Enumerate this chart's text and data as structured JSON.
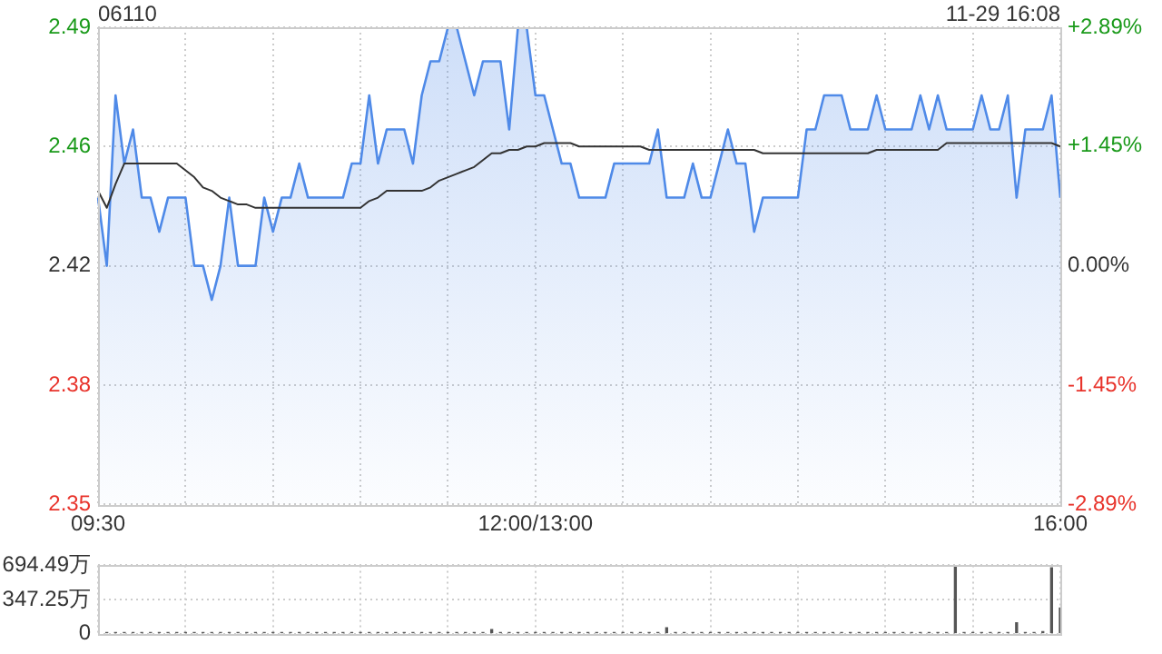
{
  "chart_data": [
    {
      "type": "line",
      "title": "06110",
      "annotations": [
        "11-29 16:08"
      ],
      "grid": true,
      "marker": "none",
      "categories": [
        "09:30",
        null,
        null,
        null,
        null,
        null,
        null,
        null,
        null,
        null,
        null,
        null,
        null,
        null,
        null,
        null,
        null,
        null,
        null,
        null,
        null,
        null,
        null,
        null,
        null,
        null,
        null,
        null,
        null,
        null,
        null,
        null,
        null,
        null,
        null,
        null,
        null,
        null,
        null,
        null,
        null,
        null,
        null,
        null,
        null,
        null,
        null,
        null,
        null,
        null,
        "12:00/13:00",
        null,
        null,
        null,
        null,
        null,
        null,
        null,
        null,
        null,
        null,
        null,
        null,
        null,
        null,
        null,
        null,
        null,
        null,
        null,
        null,
        null,
        null,
        null,
        null,
        null,
        null,
        null,
        null,
        null,
        null,
        null,
        null,
        null,
        null,
        null,
        null,
        null,
        null,
        null,
        null,
        null,
        null,
        null,
        null,
        null,
        null,
        null,
        null,
        null,
        null,
        null,
        null,
        null,
        null,
        null,
        null,
        null,
        null,
        null,
        "16:00"
      ],
      "ylim": [
        2.35,
        2.49
      ],
      "yticks": [
        2.35,
        {
          "value": 2.385,
          "label": "2.38"
        },
        2.42,
        {
          "value": 2.455,
          "label": "2.46"
        },
        2.49
      ],
      "y2lim": [
        -2.89,
        2.89
      ],
      "y2ticks": [
        {
          "value": -2.89,
          "label": "-2.89%"
        },
        {
          "value": -1.45,
          "label": "-1.45%"
        },
        {
          "value": 0,
          "label": "0.00%"
        },
        {
          "value": 1.45,
          "label": "+1.45%"
        },
        {
          "value": 2.89,
          "label": "+2.89%"
        }
      ],
      "series": [
        {
          "type": "area",
          "color": "#4f8ae8",
          "values": [
            2.44,
            2.42,
            2.47,
            2.45,
            2.46,
            2.44,
            2.44,
            2.43,
            2.44,
            2.44,
            2.44,
            2.42,
            2.42,
            2.41,
            2.42,
            2.44,
            2.42,
            2.42,
            2.42,
            2.44,
            2.43,
            2.44,
            2.44,
            2.45,
            2.44,
            2.44,
            2.44,
            2.44,
            2.44,
            2.45,
            2.45,
            2.47,
            2.45,
            2.46,
            2.46,
            2.46,
            2.45,
            2.47,
            2.48,
            2.48,
            2.49,
            2.49,
            2.48,
            2.47,
            2.48,
            2.48,
            2.48,
            2.46,
            2.49,
            2.49,
            2.47,
            2.47,
            2.46,
            2.45,
            2.45,
            2.44,
            2.44,
            2.44,
            2.44,
            2.45,
            2.45,
            2.45,
            2.45,
            2.45,
            2.46,
            2.44,
            2.44,
            2.44,
            2.45,
            2.44,
            2.44,
            2.45,
            2.46,
            2.45,
            2.45,
            2.43,
            2.44,
            2.44,
            2.44,
            2.44,
            2.44,
            2.46,
            2.46,
            2.47,
            2.47,
            2.47,
            2.46,
            2.46,
            2.46,
            2.47,
            2.46,
            2.46,
            2.46,
            2.46,
            2.47,
            2.46,
            2.47,
            2.46,
            2.46,
            2.46,
            2.46,
            2.47,
            2.46,
            2.46,
            2.47,
            2.44,
            2.46,
            2.46,
            2.46,
            2.47,
            2.44
          ]
        },
        {
          "type": "line",
          "color": "#333333",
          "values": [
            2.442,
            2.437,
            2.444,
            2.45,
            2.45,
            2.45,
            2.45,
            2.45,
            2.45,
            2.45,
            2.448,
            2.446,
            2.443,
            2.442,
            2.44,
            2.439,
            2.438,
            2.438,
            2.437,
            2.437,
            2.437,
            2.437,
            2.437,
            2.437,
            2.437,
            2.437,
            2.437,
            2.437,
            2.437,
            2.437,
            2.437,
            2.439,
            2.44,
            2.442,
            2.442,
            2.442,
            2.442,
            2.442,
            2.443,
            2.445,
            2.446,
            2.447,
            2.448,
            2.449,
            2.451,
            2.453,
            2.453,
            2.454,
            2.454,
            2.455,
            2.455,
            2.456,
            2.456,
            2.456,
            2.456,
            2.455,
            2.455,
            2.455,
            2.455,
            2.455,
            2.455,
            2.455,
            2.455,
            2.454,
            2.454,
            2.454,
            2.454,
            2.454,
            2.454,
            2.454,
            2.454,
            2.454,
            2.454,
            2.454,
            2.454,
            2.454,
            2.453,
            2.453,
            2.453,
            2.453,
            2.453,
            2.453,
            2.453,
            2.453,
            2.453,
            2.453,
            2.453,
            2.453,
            2.453,
            2.454,
            2.454,
            2.454,
            2.454,
            2.454,
            2.454,
            2.454,
            2.454,
            2.456,
            2.456,
            2.456,
            2.456,
            2.456,
            2.456,
            2.456,
            2.456,
            2.456,
            2.456,
            2.456,
            2.456,
            2.456,
            2.455
          ]
        }
      ]
    },
    {
      "type": "bar",
      "grid": true,
      "tick_labels": "y",
      "categories": [
        null,
        null,
        null,
        null,
        null,
        null,
        null,
        null,
        null,
        null,
        null,
        null,
        null,
        null,
        null,
        null,
        null,
        null,
        null,
        null,
        null,
        null,
        null,
        null,
        null,
        null,
        null,
        null,
        null,
        null,
        null,
        null,
        null,
        null,
        null,
        null,
        null,
        null,
        null,
        null,
        null,
        null,
        null,
        null,
        null,
        null,
        null,
        null,
        null,
        null,
        null,
        null,
        null,
        null,
        null,
        null,
        null,
        null,
        null,
        null,
        null,
        null,
        null,
        null,
        null,
        null,
        null,
        null,
        null,
        null,
        null,
        null,
        null,
        null,
        null,
        null,
        null,
        null,
        null,
        null,
        null,
        null,
        null,
        null,
        null,
        null,
        null,
        null,
        null,
        null,
        null,
        null,
        null,
        null,
        null,
        null,
        null,
        null,
        null,
        null,
        null,
        null,
        null,
        null,
        null,
        null,
        null,
        null,
        null,
        null,
        null
      ],
      "ylim": [
        0,
        694.49
      ],
      "yticks": [
        0,
        {
          "value": 347.25,
          "label": "347.25万"
        },
        {
          "value": 694.49,
          "label": "694.49万"
        }
      ],
      "series": [
        {
          "color": "#555555",
          "values": [
            20,
            10,
            10,
            10,
            10,
            10,
            10,
            10,
            10,
            10,
            10,
            10,
            10,
            10,
            10,
            10,
            10,
            10,
            10,
            10,
            10,
            10,
            10,
            10,
            10,
            10,
            10,
            10,
            10,
            10,
            10,
            10,
            10,
            10,
            10,
            10,
            10,
            10,
            10,
            10,
            10,
            10,
            10,
            10,
            10,
            40,
            10,
            10,
            10,
            10,
            10,
            10,
            10,
            10,
            10,
            10,
            10,
            10,
            10,
            10,
            10,
            10,
            10,
            10,
            10,
            60,
            10,
            10,
            10,
            10,
            10,
            10,
            10,
            10,
            10,
            10,
            10,
            10,
            10,
            10,
            10,
            10,
            10,
            10,
            10,
            10,
            10,
            10,
            10,
            10,
            10,
            10,
            10,
            10,
            10,
            10,
            10,
            10,
            694.49,
            10,
            10,
            10,
            10,
            10,
            10,
            110,
            10,
            10,
            20,
            670,
            260
          ]
        }
      ]
    }
  ]
}
